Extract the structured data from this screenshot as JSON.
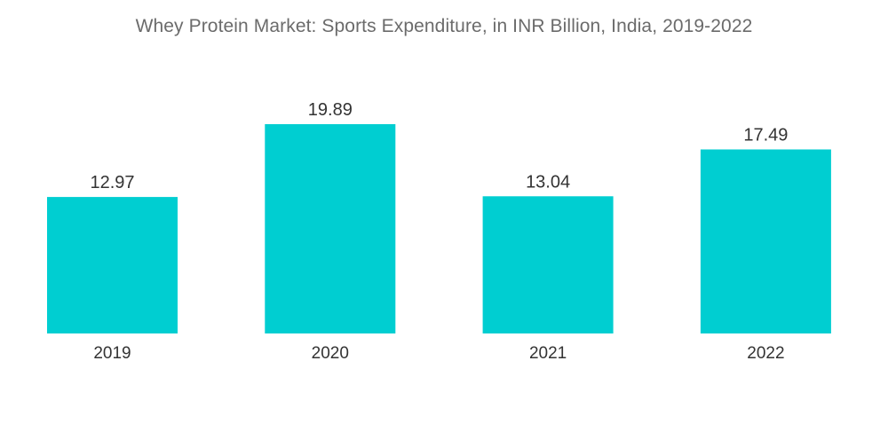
{
  "title": "Whey Protein Market: Sports Expenditure, in INR Billion, India, 2019-2022",
  "colors": {
    "bar": "#00ced1",
    "title": "#6b6b6b",
    "text": "#333333",
    "background": "#ffffff"
  },
  "chart_data": {
    "type": "bar",
    "title": "Whey Protein Market: Sports Expenditure, in INR Billion, India, 2019-2022",
    "categories": [
      "2019",
      "2020",
      "2021",
      "2022"
    ],
    "values": [
      12.97,
      19.89,
      13.04,
      17.49
    ],
    "value_labels": [
      "12.97",
      "19.89",
      "13.04",
      "17.49"
    ],
    "xlabel": "",
    "ylabel": "",
    "ylim": [
      0,
      19.89
    ],
    "grid": false,
    "legend": "none"
  }
}
